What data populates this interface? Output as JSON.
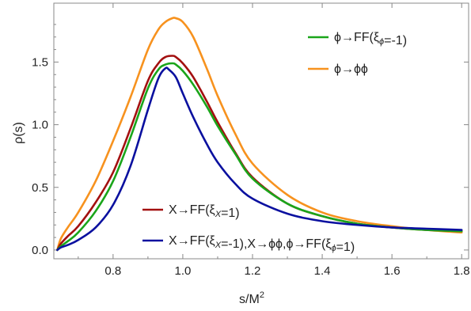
{
  "chart_data": {
    "type": "line",
    "title": "",
    "xlabel": "s/M",
    "xlabel_superscript": "2",
    "ylabel": "ρ(s)",
    "xlim": [
      0.63,
      1.82
    ],
    "ylim": [
      -0.07,
      1.97
    ],
    "xticks": [
      0.8,
      1.0,
      1.2,
      1.4,
      1.6,
      1.8
    ],
    "xtick_labels": [
      "0.8",
      "1.0",
      "1.2",
      "1.4",
      "1.6",
      "1.8"
    ],
    "yticks": [
      0.0,
      0.5,
      1.0,
      1.5
    ],
    "ytick_labels": [
      "0.0",
      "0.5",
      "1.0",
      "1.5"
    ],
    "grid": false,
    "legend_top": {
      "placement": "top-right",
      "entries": [
        {
          "text": "ϕ→FF(ξ",
          "sub": "ϕ",
          "tail": "=-1)",
          "color": "#1aa51a"
        },
        {
          "text": "ϕ→ϕϕ",
          "sub": "",
          "tail": "",
          "color": "#f7921e"
        }
      ]
    },
    "legend_bottom": {
      "placement": "bottom-center",
      "entries": [
        {
          "text": "X→FF(ξ",
          "sub": "X",
          "tail": "=1)",
          "color": "#a31010"
        },
        {
          "text": "X→FF(ξ",
          "sub": "X",
          "tail": "=-1),X→ϕϕ,ϕ→FF(ξ",
          "sub2": "ϕ",
          "tail2": "=1)",
          "color": "#0a109f"
        }
      ]
    },
    "series": [
      {
        "key": "orange",
        "color": "#f7921e",
        "x": [
          0.64,
          0.65,
          0.67,
          0.7,
          0.75,
          0.8,
          0.85,
          0.9,
          0.93,
          0.95,
          0.97,
          0.98,
          1.0,
          1.03,
          1.07,
          1.1,
          1.15,
          1.2,
          1.3,
          1.4,
          1.5,
          1.6,
          1.7,
          1.8
        ],
        "y": [
          0.0,
          0.09,
          0.18,
          0.3,
          0.55,
          0.87,
          1.22,
          1.6,
          1.76,
          1.82,
          1.85,
          1.85,
          1.82,
          1.7,
          1.44,
          1.23,
          0.93,
          0.69,
          0.44,
          0.3,
          0.23,
          0.19,
          0.16,
          0.14
        ]
      },
      {
        "key": "red",
        "color": "#a31010",
        "x": [
          0.64,
          0.65,
          0.67,
          0.7,
          0.75,
          0.8,
          0.85,
          0.9,
          0.93,
          0.95,
          0.97,
          0.98,
          1.0,
          1.03,
          1.07,
          1.1,
          1.15,
          1.2,
          1.3,
          1.4,
          1.5,
          1.6,
          1.7,
          1.8
        ],
        "y": [
          0.0,
          0.05,
          0.11,
          0.19,
          0.38,
          0.62,
          0.97,
          1.35,
          1.49,
          1.54,
          1.55,
          1.54,
          1.49,
          1.38,
          1.18,
          1.02,
          0.78,
          0.58,
          0.37,
          0.27,
          0.21,
          0.18,
          0.16,
          0.15
        ]
      },
      {
        "key": "green",
        "color": "#1aa51a",
        "x": [
          0.64,
          0.65,
          0.67,
          0.7,
          0.75,
          0.8,
          0.85,
          0.9,
          0.93,
          0.95,
          0.97,
          0.98,
          1.0,
          1.03,
          1.07,
          1.1,
          1.15,
          1.2,
          1.3,
          1.4,
          1.5,
          1.6,
          1.7,
          1.8
        ],
        "y": [
          0.0,
          0.03,
          0.07,
          0.14,
          0.31,
          0.55,
          0.9,
          1.29,
          1.44,
          1.48,
          1.49,
          1.48,
          1.43,
          1.32,
          1.14,
          0.99,
          0.77,
          0.57,
          0.37,
          0.27,
          0.21,
          0.18,
          0.16,
          0.15
        ]
      },
      {
        "key": "blue",
        "color": "#0a109f",
        "x": [
          0.64,
          0.65,
          0.67,
          0.7,
          0.75,
          0.8,
          0.85,
          0.9,
          0.93,
          0.95,
          0.96,
          0.98,
          1.0,
          1.03,
          1.07,
          1.1,
          1.15,
          1.2,
          1.3,
          1.4,
          1.5,
          1.6,
          1.7,
          1.8
        ],
        "y": [
          0.0,
          0.02,
          0.04,
          0.08,
          0.18,
          0.36,
          0.67,
          1.12,
          1.37,
          1.45,
          1.44,
          1.38,
          1.25,
          1.06,
          0.84,
          0.7,
          0.53,
          0.41,
          0.29,
          0.23,
          0.2,
          0.18,
          0.17,
          0.16
        ]
      }
    ]
  }
}
